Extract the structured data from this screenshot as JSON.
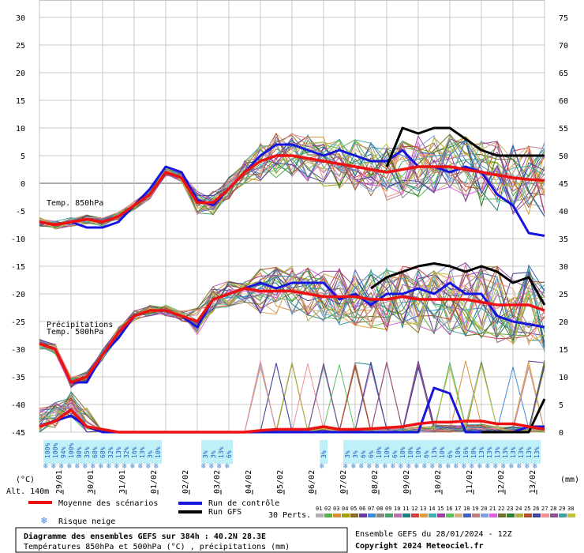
{
  "chart_data": {
    "type": "line",
    "title": "Diagramme des ensembles GEFS sur 384h : 40.2N 28.3E",
    "subtitle": "Températures 850hPa et 500hPa (°C) , précipitations (mm)",
    "run_info": "Ensemble GEFS du 28/01/2024 - 12Z",
    "copyright": "Copyright 2024 Meteociel.fr",
    "altitude": "Alt. 140m",
    "left_unit": "(°C)",
    "right_unit": "(mm)",
    "left_axis": {
      "min": -45,
      "max": 30,
      "ticks": [
        30,
        25,
        20,
        15,
        10,
        5,
        0,
        -5,
        -10,
        -15,
        -20,
        -25,
        -30,
        -35,
        -40,
        -45
      ]
    },
    "right_axis": {
      "min": 0,
      "max": 75,
      "ticks": [
        75,
        70,
        65,
        60,
        55,
        50,
        45,
        40,
        35,
        30,
        25,
        20,
        15,
        10,
        5,
        0
      ]
    },
    "x_labels": [
      "29/01",
      "30/01",
      "31/01",
      "01/02",
      "02/02",
      "03/02",
      "04/02",
      "05/02",
      "06/02",
      "07/02",
      "08/02",
      "09/02",
      "10/02",
      "11/02",
      "12/02",
      "13/02"
    ],
    "x_range_hours": [
      0,
      384
    ],
    "panel_labels": {
      "t850": "Temp. 850hPa",
      "precip": "Précipitations",
      "t500": "Temp. 500hPa"
    },
    "legend": {
      "mean": {
        "label": "Moyenne des scénarios",
        "color": "#ee1111"
      },
      "control": {
        "label": "Run de contrôle",
        "color": "#1515dd"
      },
      "gfs": {
        "label": "Run GFS",
        "color": "#000000"
      },
      "snow": {
        "label": "Risque neige",
        "color": "#3d8fe0"
      }
    },
    "perts_label": "30 Perts.",
    "pert_ids": [
      "01",
      "02",
      "03",
      "04",
      "05",
      "06",
      "07",
      "08",
      "09",
      "10",
      "11",
      "12",
      "13",
      "14",
      "15",
      "16",
      "17",
      "18",
      "19",
      "20",
      "21",
      "22",
      "23",
      "24",
      "25",
      "26",
      "27",
      "28",
      "29",
      "30"
    ],
    "pert_colors": [
      "#b0b0b0",
      "#5ab04a",
      "#d88f3a",
      "#a0a000",
      "#8a6a2a",
      "#6a3aa0",
      "#3a8ad8",
      "#888888",
      "#4aa06a",
      "#c06ab0",
      "#208080",
      "#d04040",
      "#e0a040",
      "#40b0b0",
      "#a040a0",
      "#60c060",
      "#d0b080",
      "#4060c0",
      "#c08080",
      "#80a0e0",
      "#e060e0",
      "#707030",
      "#308030",
      "#b0b040",
      "#b05030",
      "#4040a0",
      "#f09090",
      "#905090",
      "#40a0a0",
      "#c0c040"
    ],
    "snow_risk": [
      {
        "hour": 6,
        "pct": "100%"
      },
      {
        "hour": 12,
        "pct": "100%"
      },
      {
        "hour": 18,
        "pct": "94%"
      },
      {
        "hour": 24,
        "pct": "100%"
      },
      {
        "hour": 30,
        "pct": "90%"
      },
      {
        "hour": 36,
        "pct": "35%"
      },
      {
        "hour": 42,
        "pct": "68%"
      },
      {
        "hour": 48,
        "pct": "68%"
      },
      {
        "hour": 54,
        "pct": "32%"
      },
      {
        "hour": 60,
        "pct": "13%"
      },
      {
        "hour": 66,
        "pct": "32%"
      },
      {
        "hour": 72,
        "pct": "16%"
      },
      {
        "hour": 78,
        "pct": "13%"
      },
      {
        "hour": 84,
        "pct": "3%"
      },
      {
        "hour": 90,
        "pct": "10%"
      },
      {
        "hour": 126,
        "pct": "3%"
      },
      {
        "hour": 132,
        "pct": "3%"
      },
      {
        "hour": 138,
        "pct": "13%"
      },
      {
        "hour": 144,
        "pct": "6%"
      },
      {
        "hour": 216,
        "pct": "3%"
      },
      {
        "hour": 234,
        "pct": "3%"
      },
      {
        "hour": 240,
        "pct": "3%"
      },
      {
        "hour": 246,
        "pct": "6%"
      },
      {
        "hour": 252,
        "pct": "6%"
      },
      {
        "hour": 258,
        "pct": "10%"
      },
      {
        "hour": 264,
        "pct": "10%"
      },
      {
        "hour": 270,
        "pct": "6%"
      },
      {
        "hour": 276,
        "pct": "10%"
      },
      {
        "hour": 282,
        "pct": "10%"
      },
      {
        "hour": 288,
        "pct": "10%"
      },
      {
        "hour": 294,
        "pct": "6%"
      },
      {
        "hour": 300,
        "pct": "13%"
      },
      {
        "hour": 306,
        "pct": "10%"
      },
      {
        "hour": 312,
        "pct": "6%"
      },
      {
        "hour": 318,
        "pct": "10%"
      },
      {
        "hour": 324,
        "pct": "16%"
      },
      {
        "hour": 330,
        "pct": "10%"
      },
      {
        "hour": 336,
        "pct": "13%"
      },
      {
        "hour": 342,
        "pct": "13%"
      },
      {
        "hour": 348,
        "pct": "13%"
      },
      {
        "hour": 354,
        "pct": "13%"
      },
      {
        "hour": 360,
        "pct": "13%"
      },
      {
        "hour": 366,
        "pct": "13%"
      },
      {
        "hour": 372,
        "pct": "13%"
      },
      {
        "hour": 378,
        "pct": "13%"
      }
    ],
    "series": [
      {
        "key": "t850_mean",
        "axis": "left",
        "x": [
          0,
          12,
          24,
          36,
          48,
          60,
          72,
          84,
          96,
          108,
          120,
          132,
          144,
          156,
          168,
          180,
          192,
          204,
          216,
          228,
          240,
          252,
          264,
          276,
          288,
          300,
          312,
          324,
          336,
          348,
          360,
          372,
          384
        ],
        "y": [
          -7,
          -7.5,
          -7,
          -6.5,
          -7,
          -6,
          -4,
          -2,
          2,
          1,
          -3.5,
          -3.5,
          -1,
          2,
          4,
          5,
          5,
          4.5,
          4,
          3.5,
          3,
          2.5,
          2,
          2.5,
          3,
          3,
          3,
          2.5,
          2,
          1.5,
          1,
          0.7,
          0.5
        ]
      },
      {
        "key": "t850_control",
        "axis": "left",
        "x": [
          0,
          12,
          24,
          36,
          48,
          60,
          72,
          84,
          96,
          108,
          120,
          132,
          144,
          156,
          168,
          180,
          192,
          204,
          216,
          228,
          240,
          252,
          264,
          276,
          288,
          300,
          312,
          324,
          336,
          348,
          360,
          372,
          384
        ],
        "y": [
          -7,
          -7.5,
          -7,
          -8,
          -8,
          -7,
          -4,
          -1,
          3,
          2,
          -3,
          -4,
          -1,
          2,
          5,
          7,
          7,
          6,
          5,
          6,
          5,
          4,
          4,
          6,
          3,
          3,
          2,
          3,
          2,
          -2,
          -4,
          -9,
          -9.5
        ]
      },
      {
        "key": "t850_gfs",
        "axis": "left",
        "x": [
          264,
          276,
          288,
          300,
          312,
          324,
          336,
          348,
          360,
          372,
          384
        ],
        "y": [
          3,
          10,
          9,
          10,
          10,
          8,
          6,
          5,
          5,
          5,
          5
        ]
      },
      {
        "key": "t500_mean",
        "axis": "left",
        "x": [
          0,
          12,
          24,
          36,
          48,
          60,
          72,
          84,
          96,
          108,
          120,
          132,
          144,
          156,
          168,
          180,
          192,
          204,
          216,
          228,
          240,
          252,
          264,
          276,
          288,
          300,
          312,
          324,
          336,
          348,
          360,
          372,
          384
        ],
        "y": [
          -29,
          -30,
          -36,
          -35,
          -31,
          -27,
          -24,
          -23,
          -23,
          -24,
          -25,
          -21,
          -20,
          -19,
          -19.5,
          -19.5,
          -19.5,
          -20,
          -20.5,
          -20.5,
          -20.5,
          -21,
          -21,
          -20.5,
          -21,
          -21,
          -21,
          -21,
          -21.5,
          -22,
          -22,
          -22,
          -23
        ]
      },
      {
        "key": "t500_control",
        "axis": "left",
        "x": [
          0,
          12,
          24,
          36,
          48,
          60,
          72,
          84,
          96,
          108,
          120,
          132,
          144,
          156,
          168,
          180,
          192,
          204,
          216,
          228,
          240,
          252,
          264,
          276,
          288,
          300,
          312,
          324,
          336,
          348,
          360,
          372,
          384
        ],
        "y": [
          -29,
          -30,
          -36,
          -36,
          -31,
          -28,
          -24,
          -23,
          -23,
          -24,
          -26,
          -21,
          -20,
          -19,
          -18,
          -19,
          -18,
          -18,
          -18,
          -21,
          -20,
          -22,
          -20,
          -20,
          -19,
          -20,
          -18,
          -20,
          -20,
          -24,
          -25,
          -25.5,
          -26
        ]
      },
      {
        "key": "t500_gfs",
        "axis": "left",
        "x": [
          252,
          264,
          276,
          288,
          300,
          312,
          324,
          336,
          348,
          360,
          372,
          384
        ],
        "y": [
          -19,
          -17,
          -16,
          -15,
          -14.5,
          -15,
          -16,
          -15,
          -16,
          -18,
          -17,
          -22
        ]
      },
      {
        "key": "precip_mean",
        "axis": "right",
        "x": [
          0,
          12,
          24,
          36,
          48,
          60,
          72,
          84,
          96,
          108,
          120,
          132,
          144,
          156,
          168,
          180,
          192,
          204,
          216,
          228,
          240,
          252,
          264,
          276,
          288,
          300,
          312,
          324,
          336,
          348,
          360,
          372,
          384
        ],
        "y": [
          1,
          2,
          4,
          1,
          0.5,
          0,
          0,
          0,
          0,
          0,
          0,
          0,
          0,
          0,
          0.3,
          0.5,
          0.5,
          0.5,
          1,
          0.5,
          0.5,
          0.6,
          0.8,
          1,
          1.5,
          1.8,
          1.8,
          2,
          2,
          1.5,
          1.5,
          1,
          0.5
        ]
      },
      {
        "key": "precip_control",
        "axis": "right",
        "x": [
          0,
          12,
          24,
          36,
          48,
          60,
          72,
          84,
          96,
          108,
          120,
          132,
          144,
          156,
          168,
          180,
          192,
          204,
          216,
          228,
          240,
          252,
          264,
          276,
          288,
          300,
          312,
          324,
          336,
          348,
          360,
          372,
          384
        ],
        "y": [
          1,
          2,
          3,
          1,
          0,
          0,
          0,
          0,
          0,
          0,
          0,
          0,
          0,
          0,
          0,
          0,
          0,
          0,
          0,
          0,
          0,
          0,
          0,
          0,
          0,
          8,
          7,
          0,
          0,
          0,
          0,
          1,
          1
        ]
      },
      {
        "key": "precip_gfs",
        "axis": "right",
        "x": [
          336,
          348,
          360,
          372,
          384
        ],
        "y": [
          0,
          0,
          0,
          0,
          6
        ]
      }
    ]
  }
}
